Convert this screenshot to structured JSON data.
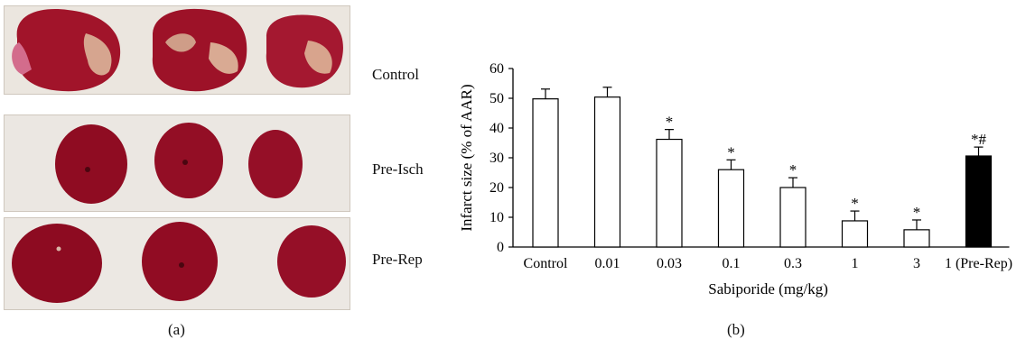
{
  "panel_a": {
    "row_labels": [
      "Control",
      "Pre-Isch",
      "Pre-Rep"
    ],
    "caption": "(a)"
  },
  "panel_b": {
    "caption": "(b)"
  },
  "colors": {
    "tissue_dark": "#8a0d22",
    "tissue_mid": "#a8182f",
    "infarct_pale": "#d8a38f",
    "background_photo": "#e9e3dc",
    "bar_open": "#ffffff",
    "bar_filled": "#000000"
  },
  "chart_data": {
    "type": "bar",
    "categories": [
      "Control",
      "0.01",
      "0.03",
      "0.1",
      "0.3",
      "1",
      "3",
      "1 (Pre-Rep)"
    ],
    "values": [
      49.8,
      50.4,
      36.2,
      26.0,
      20.0,
      8.8,
      5.8,
      30.6
    ],
    "errors": [
      3.3,
      3.3,
      3.3,
      3.3,
      3.3,
      3.3,
      3.3,
      3.0
    ],
    "markers": [
      "",
      "",
      "*",
      "*",
      "*",
      "*",
      "*",
      "*#"
    ],
    "filled": [
      false,
      false,
      false,
      false,
      false,
      false,
      false,
      true
    ],
    "xlabel": "Sabiporide (mg/kg)",
    "ylabel": "Infarct size (% of AAR)",
    "ylim": [
      0,
      60
    ],
    "yticks": [
      0,
      10,
      20,
      30,
      40,
      50,
      60
    ],
    "grid": false,
    "legend": "none"
  }
}
